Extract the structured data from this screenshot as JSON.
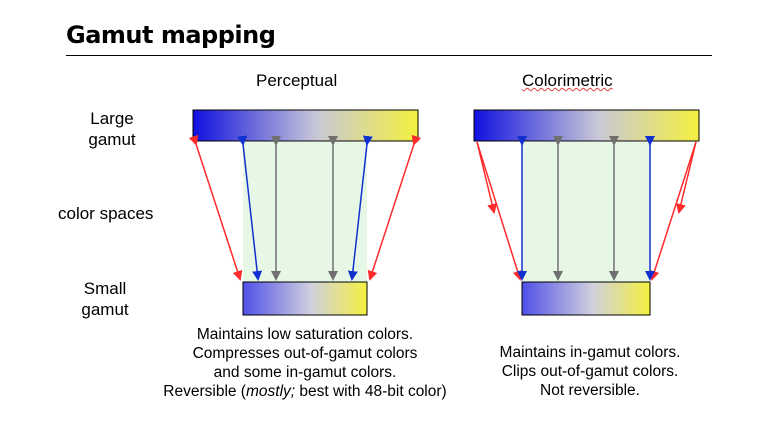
{
  "title": "Gamut mapping",
  "columns": {
    "perceptual": "Perceptual",
    "colorimetric": "Colorimetric"
  },
  "row_labels": {
    "large_line1": "Large",
    "large_line2": "gamut",
    "color_spaces": "color spaces",
    "small_line1": "Small",
    "small_line2": "gamut"
  },
  "perceptual_caption": {
    "line1": "Maintains low saturation colors.",
    "line2": "Compresses out-of-gamut colors",
    "line3": "and some in-gamut colors.",
    "line4_prefix": "Reversible (",
    "line4_italic": "mostly;",
    "line4_suffix": " best with 48-bit color)"
  },
  "colorimetric_caption": {
    "line1": "Maintains in-gamut colors.",
    "line2": "Clips out-of-gamut colors.",
    "line3": "Not reversible."
  },
  "colors": {
    "gradient_start": "#1010e0",
    "gradient_mid": "#c8c8d8",
    "gradient_end": "#f4f040",
    "in_gamut_fill": "#e6f7e6",
    "arrow_red": "#ff2a2a",
    "arrow_blue": "#1030d0",
    "arrow_gray": "#707070"
  }
}
